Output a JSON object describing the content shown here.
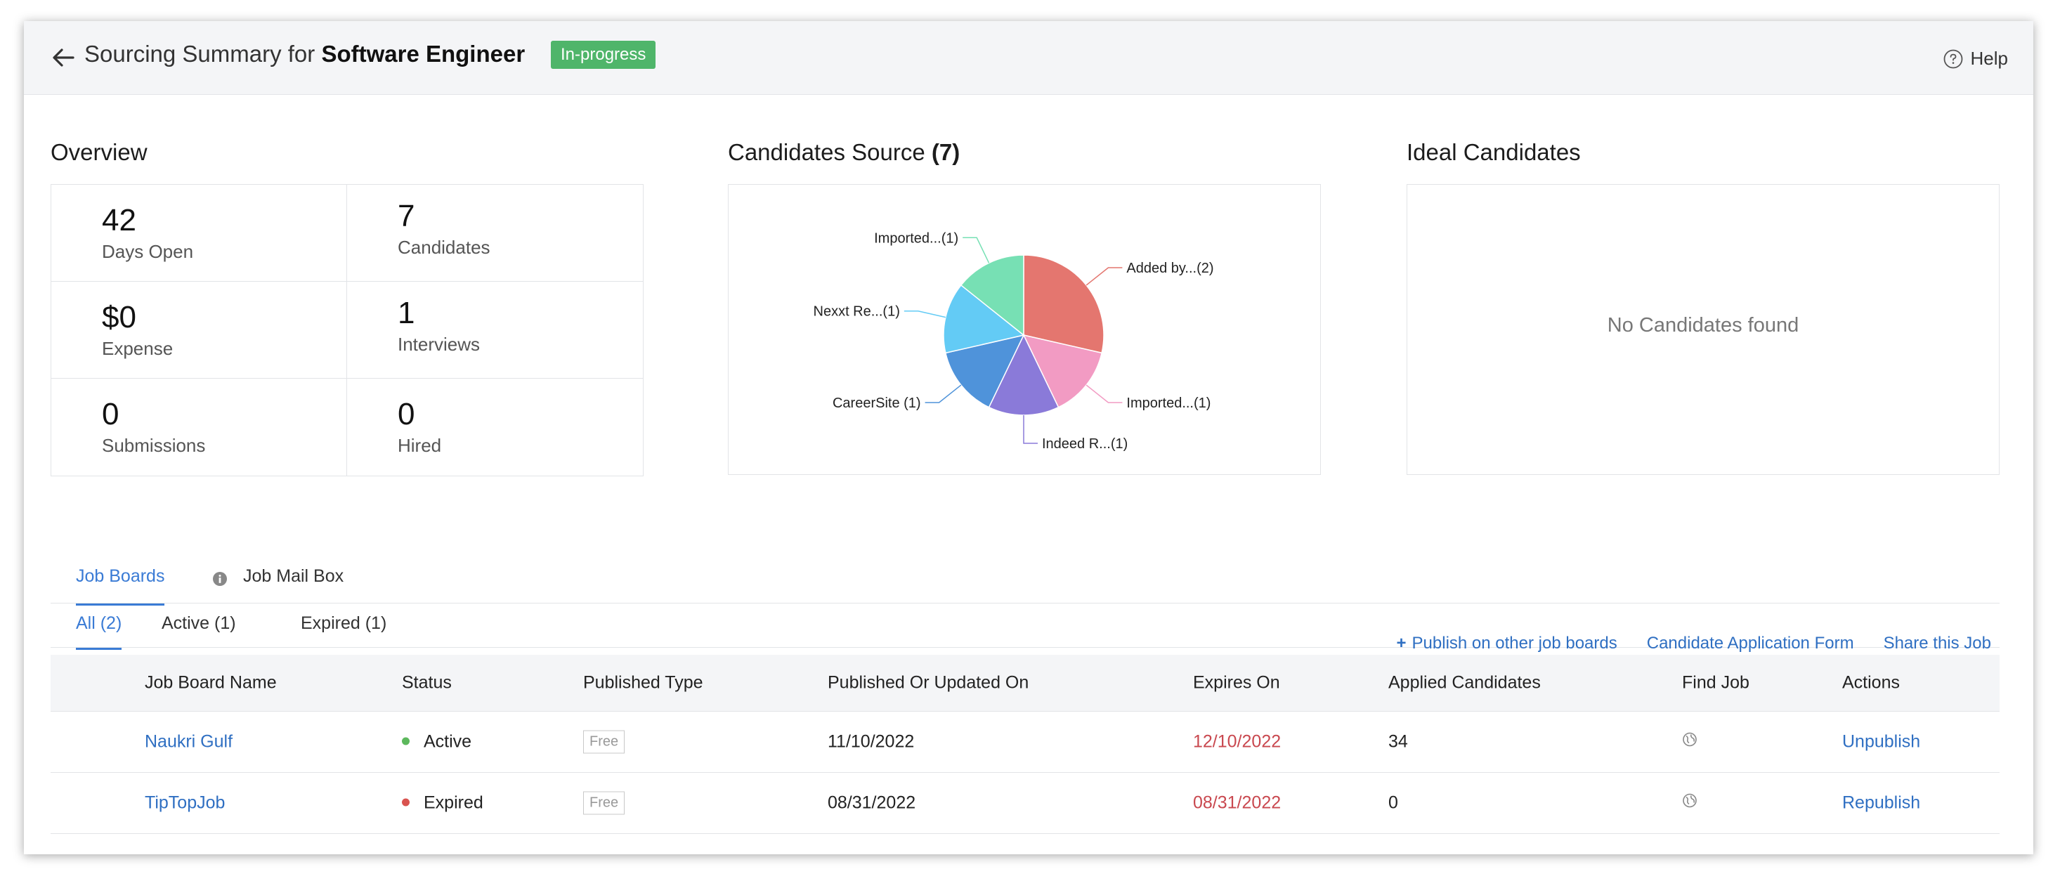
{
  "header": {
    "title_prefix": "Sourcing Summary for",
    "title_job": "Software Engineer",
    "status_badge": "In-progress",
    "help_label": "Help"
  },
  "overview": {
    "title": "Overview",
    "stats": [
      {
        "value": "42",
        "label": "Days Open"
      },
      {
        "value": "7",
        "label": "Candidates"
      },
      {
        "value": "$0",
        "label": "Expense"
      },
      {
        "value": "1",
        "label": "Interviews"
      },
      {
        "value": "0",
        "label": "Submissions"
      },
      {
        "value": "0",
        "label": "Hired"
      }
    ]
  },
  "candidates_source": {
    "title": "Candidates Source",
    "count": "(7)"
  },
  "chart_data": {
    "type": "pie",
    "slices": [
      {
        "label": "Added by...(2)",
        "value": 2,
        "color": "#e4766f"
      },
      {
        "label": "Imported...(1)",
        "value": 1,
        "color": "#f29bc3"
      },
      {
        "label": "Indeed R...(1)",
        "value": 1,
        "color": "#8a7ad9"
      },
      {
        "label": "CareerSite (1)",
        "value": 1,
        "color": "#4f93da"
      },
      {
        "label": "Nexxt Re...(1)",
        "value": 1,
        "color": "#63cbf5"
      },
      {
        "label": "Imported...(1)",
        "value": 1,
        "color": "#77e0b4"
      }
    ]
  },
  "ideal_candidates": {
    "title": "Ideal Candidates",
    "empty_message": "No Candidates found"
  },
  "tabs": {
    "job_boards": "Job Boards",
    "job_mail_box": "Job Mail Box"
  },
  "subtabs": {
    "all": "All (2)",
    "active": "Active (1)",
    "expired": "Expired (1)"
  },
  "actions": {
    "publish": "Publish on other job boards",
    "application_form": "Candidate Application Form",
    "share": "Share this Job"
  },
  "table": {
    "headers": [
      "Job Board Name",
      "Status",
      "Published Type",
      "Published Or Updated On",
      "Expires On",
      "Applied Candidates",
      "Find Job",
      "Actions"
    ],
    "rows": [
      {
        "name": "Naukri Gulf",
        "status": "Active",
        "status_color": "#5cb85c",
        "type": "Free",
        "published": "11/10/2022",
        "expires": "12/10/2022",
        "applied": "34",
        "action": "Unpublish"
      },
      {
        "name": "TipTopJob",
        "status": "Expired",
        "status_color": "#d9534f",
        "type": "Free",
        "published": "08/31/2022",
        "expires": "08/31/2022",
        "applied": "0",
        "action": "Republish"
      }
    ]
  },
  "colors": {
    "accent": "#3a7bd5",
    "badge": "#4fb56a",
    "expiry_red": "#c9484f"
  }
}
